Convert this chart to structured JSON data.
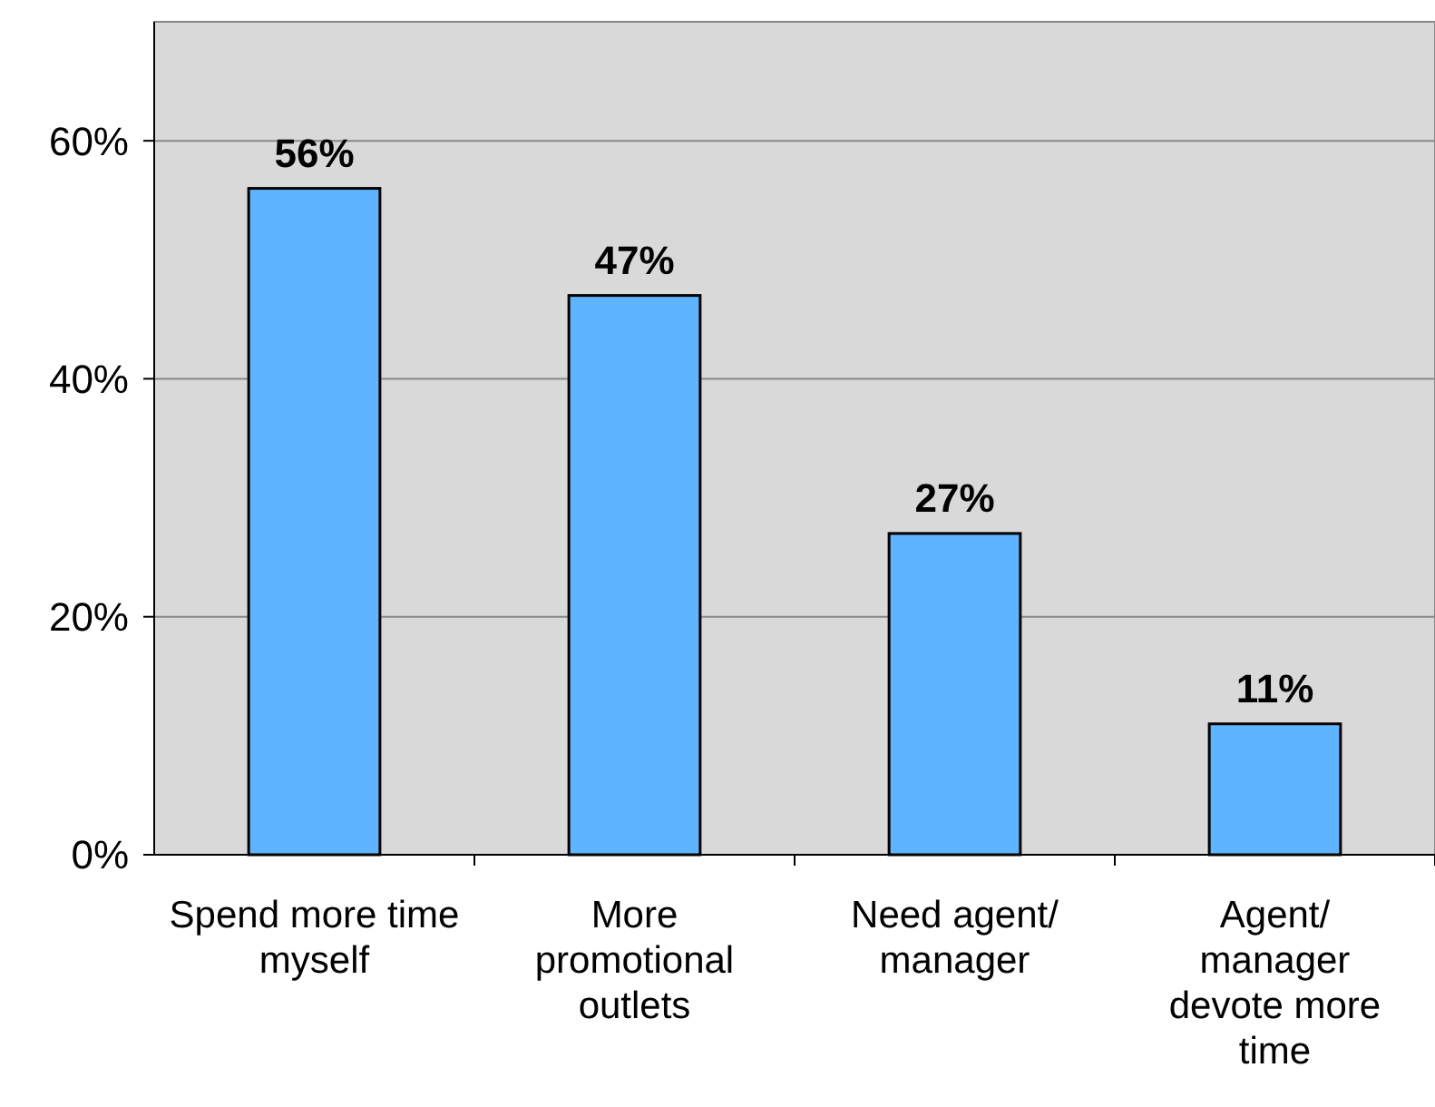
{
  "chart_data": {
    "type": "bar",
    "categories": [
      "Spend more time\nmyself",
      "More\npromotional\noutlets",
      "Need agent/\nmanager",
      "Agent/\nmanager\ndevote more\ntime"
    ],
    "values": [
      56,
      47,
      27,
      11
    ],
    "color": "#5fb4ff",
    "ylim": [
      0,
      70
    ],
    "yticks": [
      {
        "value": 0,
        "label": "0%"
      },
      {
        "value": 20,
        "label": "20%"
      },
      {
        "value": 40,
        "label": "40%"
      },
      {
        "value": 60,
        "label": "60%"
      }
    ],
    "grid": "y",
    "value_labels": [
      "56%",
      "47%",
      "27%",
      "11%"
    ]
  }
}
